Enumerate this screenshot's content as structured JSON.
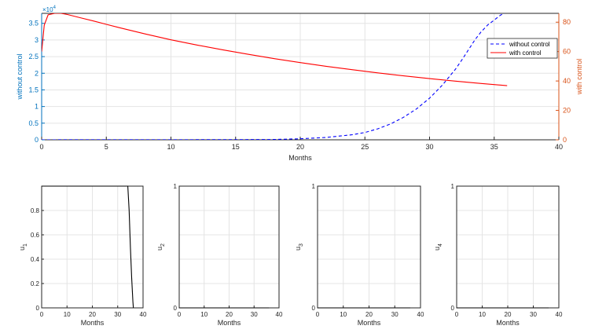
{
  "chart_data": [
    {
      "type": "line",
      "xlabel": "Months",
      "xlim": [
        0,
        40
      ],
      "xticks": [
        0,
        5,
        10,
        15,
        20,
        25,
        30,
        35,
        40
      ],
      "grid": true,
      "legend_position": "top-right",
      "left_axis": {
        "label": "without control",
        "color": "#0072BD",
        "exponent_label": "×10",
        "exponent_power": "4",
        "ylim": [
          0,
          3.8
        ],
        "ticks": [
          0,
          0.5,
          1,
          1.5,
          2,
          2.5,
          3,
          3.5
        ],
        "tick_labels": [
          "0",
          "0.5",
          "1",
          "1.5",
          "2",
          "2.5",
          "3",
          "3.5"
        ]
      },
      "right_axis": {
        "label": "with control",
        "color": "#D95319",
        "ylim": [
          0,
          86
        ],
        "ticks": [
          0,
          20,
          40,
          60,
          80
        ],
        "tick_labels": [
          "0",
          "20",
          "40",
          "60",
          "80"
        ]
      },
      "series": [
        {
          "name": "without control",
          "axis": "left",
          "color": "#0000FF",
          "style": "dashed",
          "x": [
            0,
            10,
            15,
            18,
            20,
            22,
            24,
            25,
            26,
            27,
            28,
            29,
            30,
            31,
            32,
            32.5,
            33,
            33.5,
            34,
            34.5,
            35,
            35.5,
            35.8
          ],
          "y": [
            0,
            0.002,
            0.005,
            0.01,
            0.03,
            0.07,
            0.15,
            0.22,
            0.33,
            0.48,
            0.68,
            0.93,
            1.25,
            1.65,
            2.12,
            2.4,
            2.7,
            3.0,
            3.25,
            3.45,
            3.6,
            3.75,
            3.8
          ]
        },
        {
          "name": "with control",
          "axis": "right",
          "color": "#FF0000",
          "style": "solid",
          "x": [
            0,
            0.2,
            0.5,
            1,
            1.5,
            2,
            3,
            4,
            5,
            6,
            8,
            10,
            12,
            14,
            16,
            18,
            20,
            22,
            24,
            26,
            28,
            30,
            32,
            34,
            36
          ],
          "y": [
            60,
            78,
            85,
            86,
            86,
            85.2,
            83,
            80.8,
            78.5,
            76.3,
            72,
            68,
            64.5,
            61.2,
            58.1,
            55.2,
            52.5,
            50,
            47.7,
            45.5,
            43.5,
            41.6,
            39.9,
            38.3,
            36.8
          ]
        }
      ]
    },
    {
      "type": "line",
      "ylabel": "u",
      "ysub": "1",
      "xlabel": "Months",
      "xlim": [
        0,
        40
      ],
      "ylim": [
        0,
        1
      ],
      "xticks": [
        0,
        10,
        20,
        30,
        40
      ],
      "yticks": [
        0,
        0.2,
        0.4,
        0.6,
        0.8
      ],
      "ytick_labels": [
        "0",
        "0.2",
        "0.4",
        "0.6",
        "0.8"
      ],
      "grid": true,
      "series": [
        {
          "color": "#000000",
          "x": [
            0,
            34,
            34.5,
            35,
            35.5,
            36,
            36.2
          ],
          "y": [
            1,
            1,
            0.8,
            0.5,
            0.25,
            0.05,
            0
          ]
        }
      ]
    },
    {
      "type": "line",
      "ylabel": "u",
      "ysub": "2",
      "xlabel": "Months",
      "xlim": [
        0,
        40
      ],
      "ylim": [
        0,
        1
      ],
      "xticks": [
        0,
        10,
        20,
        30,
        40
      ],
      "yticks": [
        0,
        1
      ],
      "ytick_labels": [
        "0",
        "1"
      ],
      "grid": true,
      "series": [
        {
          "color": "#000000",
          "x": [
            0,
            36
          ],
          "y": [
            0,
            0
          ]
        }
      ]
    },
    {
      "type": "line",
      "ylabel": "u",
      "ysub": "3",
      "xlabel": "Months",
      "xlim": [
        0,
        40
      ],
      "ylim": [
        0,
        1
      ],
      "xticks": [
        0,
        10,
        20,
        30,
        40
      ],
      "yticks": [
        0,
        1
      ],
      "ytick_labels": [
        "0",
        "1"
      ],
      "grid": true,
      "series": [
        {
          "color": "#000000",
          "x": [
            0,
            36
          ],
          "y": [
            0,
            0
          ]
        }
      ]
    },
    {
      "type": "line",
      "ylabel": "u",
      "ysub": "4",
      "xlabel": "Months",
      "xlim": [
        0,
        40
      ],
      "ylim": [
        0,
        1
      ],
      "xticks": [
        0,
        10,
        20,
        30,
        40
      ],
      "yticks": [
        0,
        1
      ],
      "ytick_labels": [
        "0",
        "1"
      ],
      "grid": true,
      "series": [
        {
          "color": "#000000",
          "x": [
            0,
            36
          ],
          "y": [
            0,
            0
          ]
        }
      ]
    }
  ]
}
